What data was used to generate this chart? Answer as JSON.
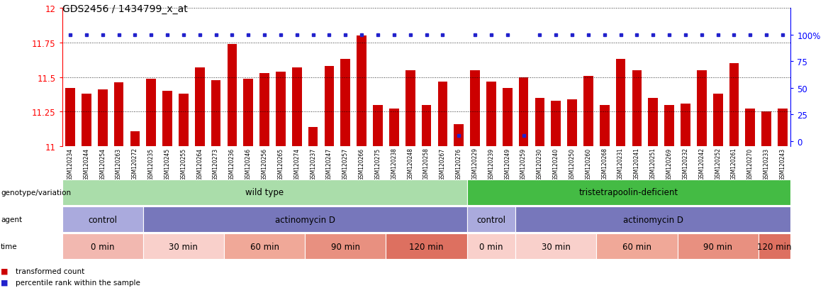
{
  "title": "GDS2456 / 1434799_x_at",
  "bar_values": [
    11.42,
    11.38,
    11.41,
    11.46,
    11.11,
    11.49,
    11.4,
    11.38,
    11.57,
    11.48,
    11.74,
    11.49,
    11.53,
    11.54,
    11.57,
    11.14,
    11.58,
    11.63,
    11.8,
    11.3,
    11.27,
    11.55,
    11.3,
    11.47,
    11.16,
    11.55,
    11.47,
    11.42,
    11.5,
    11.35,
    11.33,
    11.34,
    11.51,
    11.3,
    11.63,
    11.55,
    11.35,
    11.3,
    11.31,
    11.55,
    11.38,
    11.6,
    11.27,
    11.25,
    11.27
  ],
  "percentile_values": [
    100,
    100,
    100,
    100,
    100,
    100,
    100,
    100,
    100,
    100,
    100,
    100,
    100,
    100,
    100,
    100,
    100,
    100,
    100,
    100,
    100,
    100,
    100,
    100,
    5,
    100,
    100,
    100,
    5,
    100,
    100,
    100,
    100,
    100,
    100,
    100,
    100,
    100,
    100,
    100,
    100,
    100,
    100,
    100,
    100
  ],
  "sample_labels": [
    "GSM120234",
    "GSM120244",
    "GSM120254",
    "GSM120263",
    "GSM120272",
    "GSM120235",
    "GSM120245",
    "GSM120255",
    "GSM120264",
    "GSM120273",
    "GSM120236",
    "GSM120246",
    "GSM120256",
    "GSM120265",
    "GSM120274",
    "GSM120237",
    "GSM120247",
    "GSM120257",
    "GSM120266",
    "GSM120275",
    "GSM120238",
    "GSM120248",
    "GSM120258",
    "GSM120267",
    "GSM120276",
    "GSM120229",
    "GSM120239",
    "GSM120249",
    "GSM120259",
    "GSM120230",
    "GSM120240",
    "GSM120250",
    "GSM120260",
    "GSM120268",
    "GSM120231",
    "GSM120241",
    "GSM120251",
    "GSM120269",
    "GSM120232",
    "GSM120242",
    "GSM120252",
    "GSM120261",
    "GSM120270",
    "GSM120233",
    "GSM120243"
  ],
  "ylim": [
    11.0,
    12.0
  ],
  "yticks": [
    11.0,
    11.25,
    11.5,
    11.75,
    12.0
  ],
  "ytick_labels": [
    "11",
    "11.25",
    "11.5",
    "11.75",
    "12"
  ],
  "right_yticks": [
    0,
    25,
    50,
    75,
    100
  ],
  "right_ytick_labels": [
    "0",
    "25",
    "50",
    "75",
    "100%"
  ],
  "bar_color": "#cc0000",
  "dot_color": "#2222cc",
  "background_color": "#ffffff",
  "genotype_groups": [
    {
      "label": "wild type",
      "start": 0,
      "end": 24,
      "color": "#aaddaa"
    },
    {
      "label": "tristetrapoolin-deficient",
      "start": 25,
      "end": 44,
      "color": "#44bb44"
    }
  ],
  "agent_groups": [
    {
      "label": "control",
      "start": 0,
      "end": 4,
      "color": "#aaaadd"
    },
    {
      "label": "actinomycin D",
      "start": 5,
      "end": 24,
      "color": "#7777bb"
    },
    {
      "label": "control",
      "start": 25,
      "end": 27,
      "color": "#aaaadd"
    },
    {
      "label": "actinomycin D",
      "start": 28,
      "end": 44,
      "color": "#7777bb"
    }
  ],
  "time_groups": [
    {
      "label": "0 min",
      "start": 0,
      "end": 4,
      "color": "#f2b8b0"
    },
    {
      "label": "30 min",
      "start": 5,
      "end": 9,
      "color": "#f9d0cb"
    },
    {
      "label": "60 min",
      "start": 10,
      "end": 14,
      "color": "#f0a898"
    },
    {
      "label": "90 min",
      "start": 15,
      "end": 19,
      "color": "#e89080"
    },
    {
      "label": "120 min",
      "start": 20,
      "end": 24,
      "color": "#dd7060"
    },
    {
      "label": "0 min",
      "start": 25,
      "end": 27,
      "color": "#f9d0cb"
    },
    {
      "label": "30 min",
      "start": 28,
      "end": 32,
      "color": "#f9d0cb"
    },
    {
      "label": "60 min",
      "start": 33,
      "end": 37,
      "color": "#f0a898"
    },
    {
      "label": "90 min",
      "start": 38,
      "end": 42,
      "color": "#e89080"
    },
    {
      "label": "120 min",
      "start": 43,
      "end": 44,
      "color": "#dd7060"
    }
  ],
  "row_labels": [
    "genotype/variation",
    "agent",
    "time"
  ],
  "legend_items": [
    {
      "marker": "s",
      "color": "#cc0000",
      "label": "transformed count"
    },
    {
      "marker": "s",
      "color": "#2222cc",
      "label": "percentile rank within the sample"
    }
  ]
}
